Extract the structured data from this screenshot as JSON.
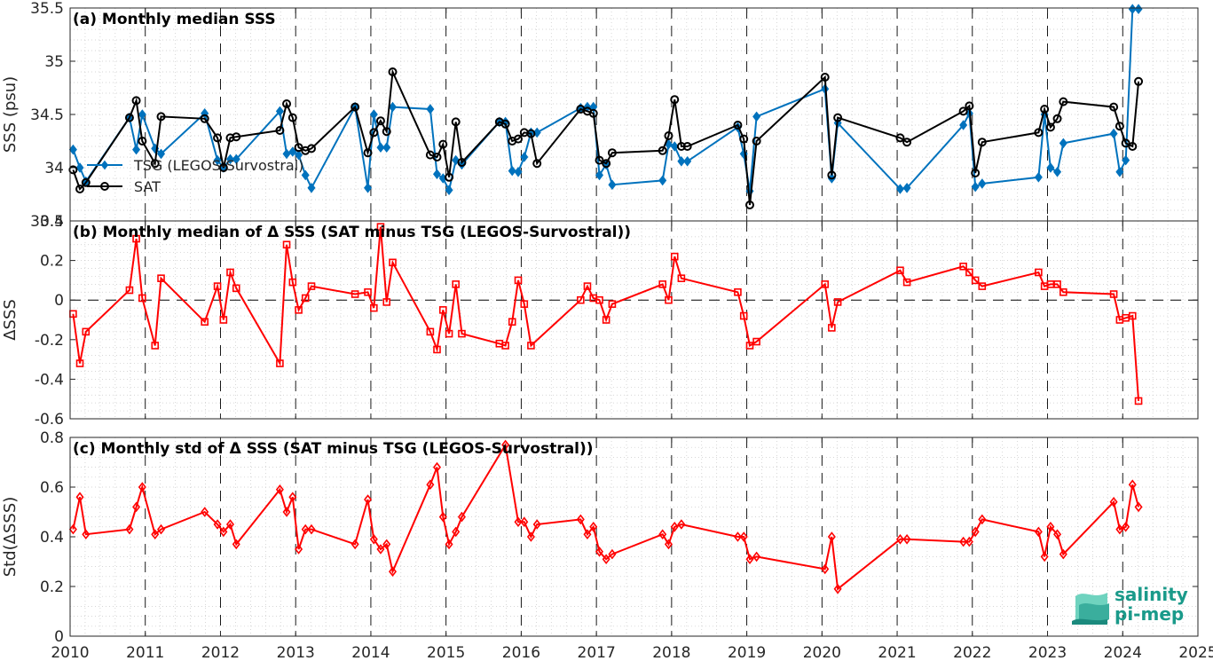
{
  "chart_data": [
    {
      "type": "line",
      "title": "(a) Monthly median SSS",
      "ylabel": "SSS (psu)",
      "xlim": [
        2010,
        2025
      ],
      "ylim": [
        33.5,
        35.5
      ],
      "yticks": [
        33.5,
        34,
        34.5,
        35,
        35.5
      ],
      "ytick_labels": [
        "33.5",
        "34",
        "34.5",
        "35",
        "35.5"
      ],
      "legend_position": "left",
      "series": [
        {
          "name": "TSG (LEGOS-Survostral)",
          "color": "#0072bd",
          "marker": "diamond",
          "x": [
            2010.04,
            2010.13,
            2010.21,
            2010.79,
            2010.88,
            2010.96,
            2011.13,
            2011.21,
            2011.79,
            2011.96,
            2012.04,
            2012.13,
            2012.21,
            2012.79,
            2012.88,
            2012.96,
            2013.04,
            2013.13,
            2013.21,
            2013.79,
            2013.96,
            2014.04,
            2014.13,
            2014.21,
            2014.29,
            2014.79,
            2014.88,
            2014.96,
            2015.04,
            2015.13,
            2015.21,
            2015.71,
            2015.79,
            2015.88,
            2015.96,
            2016.04,
            2016.13,
            2016.21,
            2016.79,
            2016.88,
            2016.96,
            2017.04,
            2017.13,
            2017.21,
            2017.88,
            2017.96,
            2018.04,
            2018.13,
            2018.21,
            2018.88,
            2018.96,
            2019.04,
            2019.13,
            2020.04,
            2020.13,
            2020.21,
            2021.04,
            2021.13,
            2021.88,
            2021.96,
            2022.04,
            2022.13,
            2022.88,
            2022.96,
            2023.04,
            2023.13,
            2023.21,
            2023.88,
            2023.96,
            2024.04,
            2024.13,
            2024.21
          ],
          "values": [
            34.17,
            34.0,
            33.87,
            34.47,
            34.17,
            34.5,
            34.18,
            34.13,
            34.51,
            34.07,
            34.0,
            34.08,
            34.08,
            34.53,
            34.13,
            34.15,
            34.12,
            33.93,
            33.81,
            34.57,
            33.81,
            34.5,
            34.19,
            34.19,
            34.57,
            34.55,
            33.94,
            33.9,
            33.79,
            34.07,
            34.03,
            34.43,
            34.43,
            33.97,
            33.96,
            34.1,
            34.33,
            34.33,
            34.56,
            34.57,
            34.57,
            33.93,
            34.03,
            33.84,
            33.88,
            34.22,
            34.2,
            34.06,
            34.06,
            34.38,
            34.13,
            33.78,
            34.48,
            34.74,
            33.9,
            34.42,
            33.8,
            33.81,
            34.4,
            34.51,
            33.82,
            33.85,
            33.91,
            34.5,
            34.0,
            33.96,
            34.23,
            34.32,
            33.96,
            34.07,
            35.49,
            35.49
          ]
        },
        {
          "name": "SAT",
          "color": "#000000",
          "marker": "circle",
          "x": [
            2010.04,
            2010.13,
            2010.21,
            2010.79,
            2010.88,
            2010.96,
            2011.13,
            2011.21,
            2011.79,
            2011.96,
            2012.04,
            2012.13,
            2012.21,
            2012.79,
            2012.88,
            2012.96,
            2013.04,
            2013.13,
            2013.21,
            2013.79,
            2013.96,
            2014.04,
            2014.13,
            2014.21,
            2014.29,
            2014.79,
            2014.88,
            2014.96,
            2015.04,
            2015.13,
            2015.21,
            2015.71,
            2015.79,
            2015.88,
            2015.96,
            2016.04,
            2016.13,
            2016.21,
            2016.79,
            2016.88,
            2016.96,
            2017.04,
            2017.13,
            2017.21,
            2017.88,
            2017.96,
            2018.04,
            2018.13,
            2018.21,
            2018.88,
            2018.96,
            2019.04,
            2019.13,
            2020.04,
            2020.13,
            2020.21,
            2021.04,
            2021.13,
            2021.88,
            2021.96,
            2022.04,
            2022.13,
            2022.88,
            2022.96,
            2023.04,
            2023.13,
            2023.21,
            2023.88,
            2023.96,
            2024.04,
            2024.13,
            2024.21
          ],
          "values": [
            33.98,
            33.8,
            33.86,
            34.47,
            34.63,
            34.25,
            34.04,
            34.48,
            34.46,
            34.28,
            34.0,
            34.28,
            34.29,
            34.35,
            34.6,
            34.47,
            34.19,
            34.16,
            34.18,
            34.57,
            34.14,
            34.33,
            34.44,
            34.34,
            34.9,
            34.12,
            34.1,
            34.22,
            33.91,
            34.43,
            34.05,
            34.43,
            34.41,
            34.25,
            34.27,
            34.33,
            34.32,
            34.04,
            34.55,
            34.53,
            34.51,
            34.07,
            34.04,
            34.14,
            34.16,
            34.3,
            34.64,
            34.2,
            34.2,
            34.4,
            34.27,
            33.65,
            34.25,
            34.85,
            33.93,
            34.47,
            34.28,
            34.24,
            34.53,
            34.58,
            33.95,
            34.24,
            34.33,
            34.55,
            34.38,
            34.46,
            34.62,
            34.57,
            34.39,
            34.23,
            34.2,
            34.81
          ]
        }
      ]
    },
    {
      "type": "line",
      "title": "(b) Monthly median of Δ SSS (SAT minus TSG (LEGOS-Survostral))",
      "ylabel": "ΔSSS",
      "xlim": [
        2010,
        2025
      ],
      "ylim": [
        -0.6,
        0.4
      ],
      "yticks": [
        -0.6,
        -0.4,
        -0.2,
        0,
        0.2,
        0.4
      ],
      "ytick_labels": [
        "-0.6",
        "-0.4",
        "-0.2",
        "0",
        "0.2",
        "0.4"
      ],
      "zero_line": "dashed",
      "series": [
        {
          "color": "#ff0000",
          "marker": "square",
          "x": [
            2010.04,
            2010.13,
            2010.21,
            2010.79,
            2010.88,
            2010.96,
            2011.13,
            2011.21,
            2011.79,
            2011.96,
            2012.04,
            2012.13,
            2012.21,
            2012.79,
            2012.88,
            2012.96,
            2013.04,
            2013.13,
            2013.21,
            2013.79,
            2013.96,
            2014.04,
            2014.13,
            2014.21,
            2014.29,
            2014.79,
            2014.88,
            2014.96,
            2015.04,
            2015.13,
            2015.21,
            2015.71,
            2015.79,
            2015.88,
            2015.96,
            2016.04,
            2016.13,
            2016.79,
            2016.88,
            2016.96,
            2017.04,
            2017.13,
            2017.21,
            2017.88,
            2017.96,
            2018.04,
            2018.13,
            2018.88,
            2018.96,
            2019.04,
            2019.13,
            2020.04,
            2020.13,
            2020.21,
            2021.04,
            2021.13,
            2021.88,
            2021.96,
            2022.04,
            2022.13,
            2022.88,
            2022.96,
            2023.04,
            2023.13,
            2023.21,
            2023.88,
            2023.96,
            2024.04,
            2024.13,
            2024.21
          ],
          "values": [
            -0.07,
            -0.32,
            -0.16,
            0.05,
            0.31,
            0.01,
            -0.23,
            0.11,
            -0.11,
            0.07,
            -0.1,
            0.14,
            0.06,
            -0.32,
            0.28,
            0.09,
            -0.05,
            0.01,
            0.07,
            0.03,
            0.04,
            -0.04,
            0.37,
            -0.01,
            0.19,
            -0.16,
            -0.25,
            -0.05,
            -0.17,
            0.08,
            -0.17,
            -0.22,
            -0.23,
            -0.11,
            0.1,
            -0.02,
            -0.23,
            0.0,
            0.07,
            0.01,
            0.0,
            -0.1,
            -0.02,
            0.08,
            0.0,
            0.22,
            0.11,
            0.04,
            -0.08,
            -0.23,
            -0.21,
            0.08,
            -0.14,
            -0.01,
            0.15,
            0.09,
            0.17,
            0.14,
            0.1,
            0.07,
            0.14,
            0.07,
            0.08,
            0.08,
            0.04,
            0.03,
            -0.1,
            -0.09,
            -0.08,
            -0.51
          ]
        }
      ]
    },
    {
      "type": "line",
      "title": "(c) Monthly std of Δ SSS (SAT minus TSG (LEGOS-Survostral))",
      "ylabel": "Std(ΔSSS)",
      "xlabel": "",
      "xlim": [
        2010,
        2025
      ],
      "ylim": [
        0,
        0.8
      ],
      "yticks": [
        0,
        0.2,
        0.4,
        0.6,
        0.8
      ],
      "ytick_labels": [
        "0",
        "0.2",
        "0.4",
        "0.6",
        "0.8"
      ],
      "xticks": [
        2010,
        2011,
        2012,
        2013,
        2014,
        2015,
        2016,
        2017,
        2018,
        2019,
        2020,
        2021,
        2022,
        2023,
        2024,
        2025
      ],
      "xtick_labels": [
        "2010",
        "2011",
        "2012",
        "2013",
        "2014",
        "2015",
        "2016",
        "2017",
        "2018",
        "2019",
        "2020",
        "2021",
        "2022",
        "2023",
        "2024",
        "2025"
      ],
      "series": [
        {
          "color": "#ff0000",
          "marker": "diamond",
          "x": [
            2010.04,
            2010.13,
            2010.21,
            2010.79,
            2010.88,
            2010.96,
            2011.13,
            2011.21,
            2011.79,
            2011.96,
            2012.04,
            2012.13,
            2012.21,
            2012.79,
            2012.88,
            2012.96,
            2013.04,
            2013.13,
            2013.21,
            2013.79,
            2013.96,
            2014.04,
            2014.13,
            2014.21,
            2014.29,
            2014.79,
            2014.88,
            2014.96,
            2015.04,
            2015.13,
            2015.21,
            2015.79,
            2015.96,
            2016.04,
            2016.13,
            2016.21,
            2016.79,
            2016.88,
            2016.96,
            2017.04,
            2017.13,
            2017.21,
            2017.88,
            2017.96,
            2018.04,
            2018.13,
            2018.88,
            2018.96,
            2019.04,
            2019.13,
            2020.04,
            2020.13,
            2020.21,
            2021.04,
            2021.13,
            2021.88,
            2021.96,
            2022.04,
            2022.13,
            2022.88,
            2022.96,
            2023.04,
            2023.13,
            2023.21,
            2023.88,
            2023.96,
            2024.04,
            2024.13,
            2024.21
          ],
          "values": [
            0.43,
            0.56,
            0.41,
            0.43,
            0.52,
            0.6,
            0.41,
            0.43,
            0.5,
            0.45,
            0.42,
            0.45,
            0.37,
            0.59,
            0.5,
            0.56,
            0.35,
            0.43,
            0.43,
            0.37,
            0.55,
            0.39,
            0.35,
            0.37,
            0.26,
            0.61,
            0.68,
            0.48,
            0.37,
            0.42,
            0.48,
            0.77,
            0.46,
            0.46,
            0.4,
            0.45,
            0.47,
            0.41,
            0.44,
            0.34,
            0.31,
            0.33,
            0.41,
            0.37,
            0.44,
            0.45,
            0.4,
            0.4,
            0.31,
            0.32,
            0.27,
            0.4,
            0.19,
            0.39,
            0.39,
            0.38,
            0.38,
            0.42,
            0.47,
            0.42,
            0.32,
            0.44,
            0.41,
            0.33,
            0.54,
            0.43,
            0.44,
            0.61,
            0.52
          ]
        }
      ]
    }
  ],
  "logo": {
    "line1": "salinity",
    "line2": "pi-mep",
    "color": "#1a9a8a"
  }
}
